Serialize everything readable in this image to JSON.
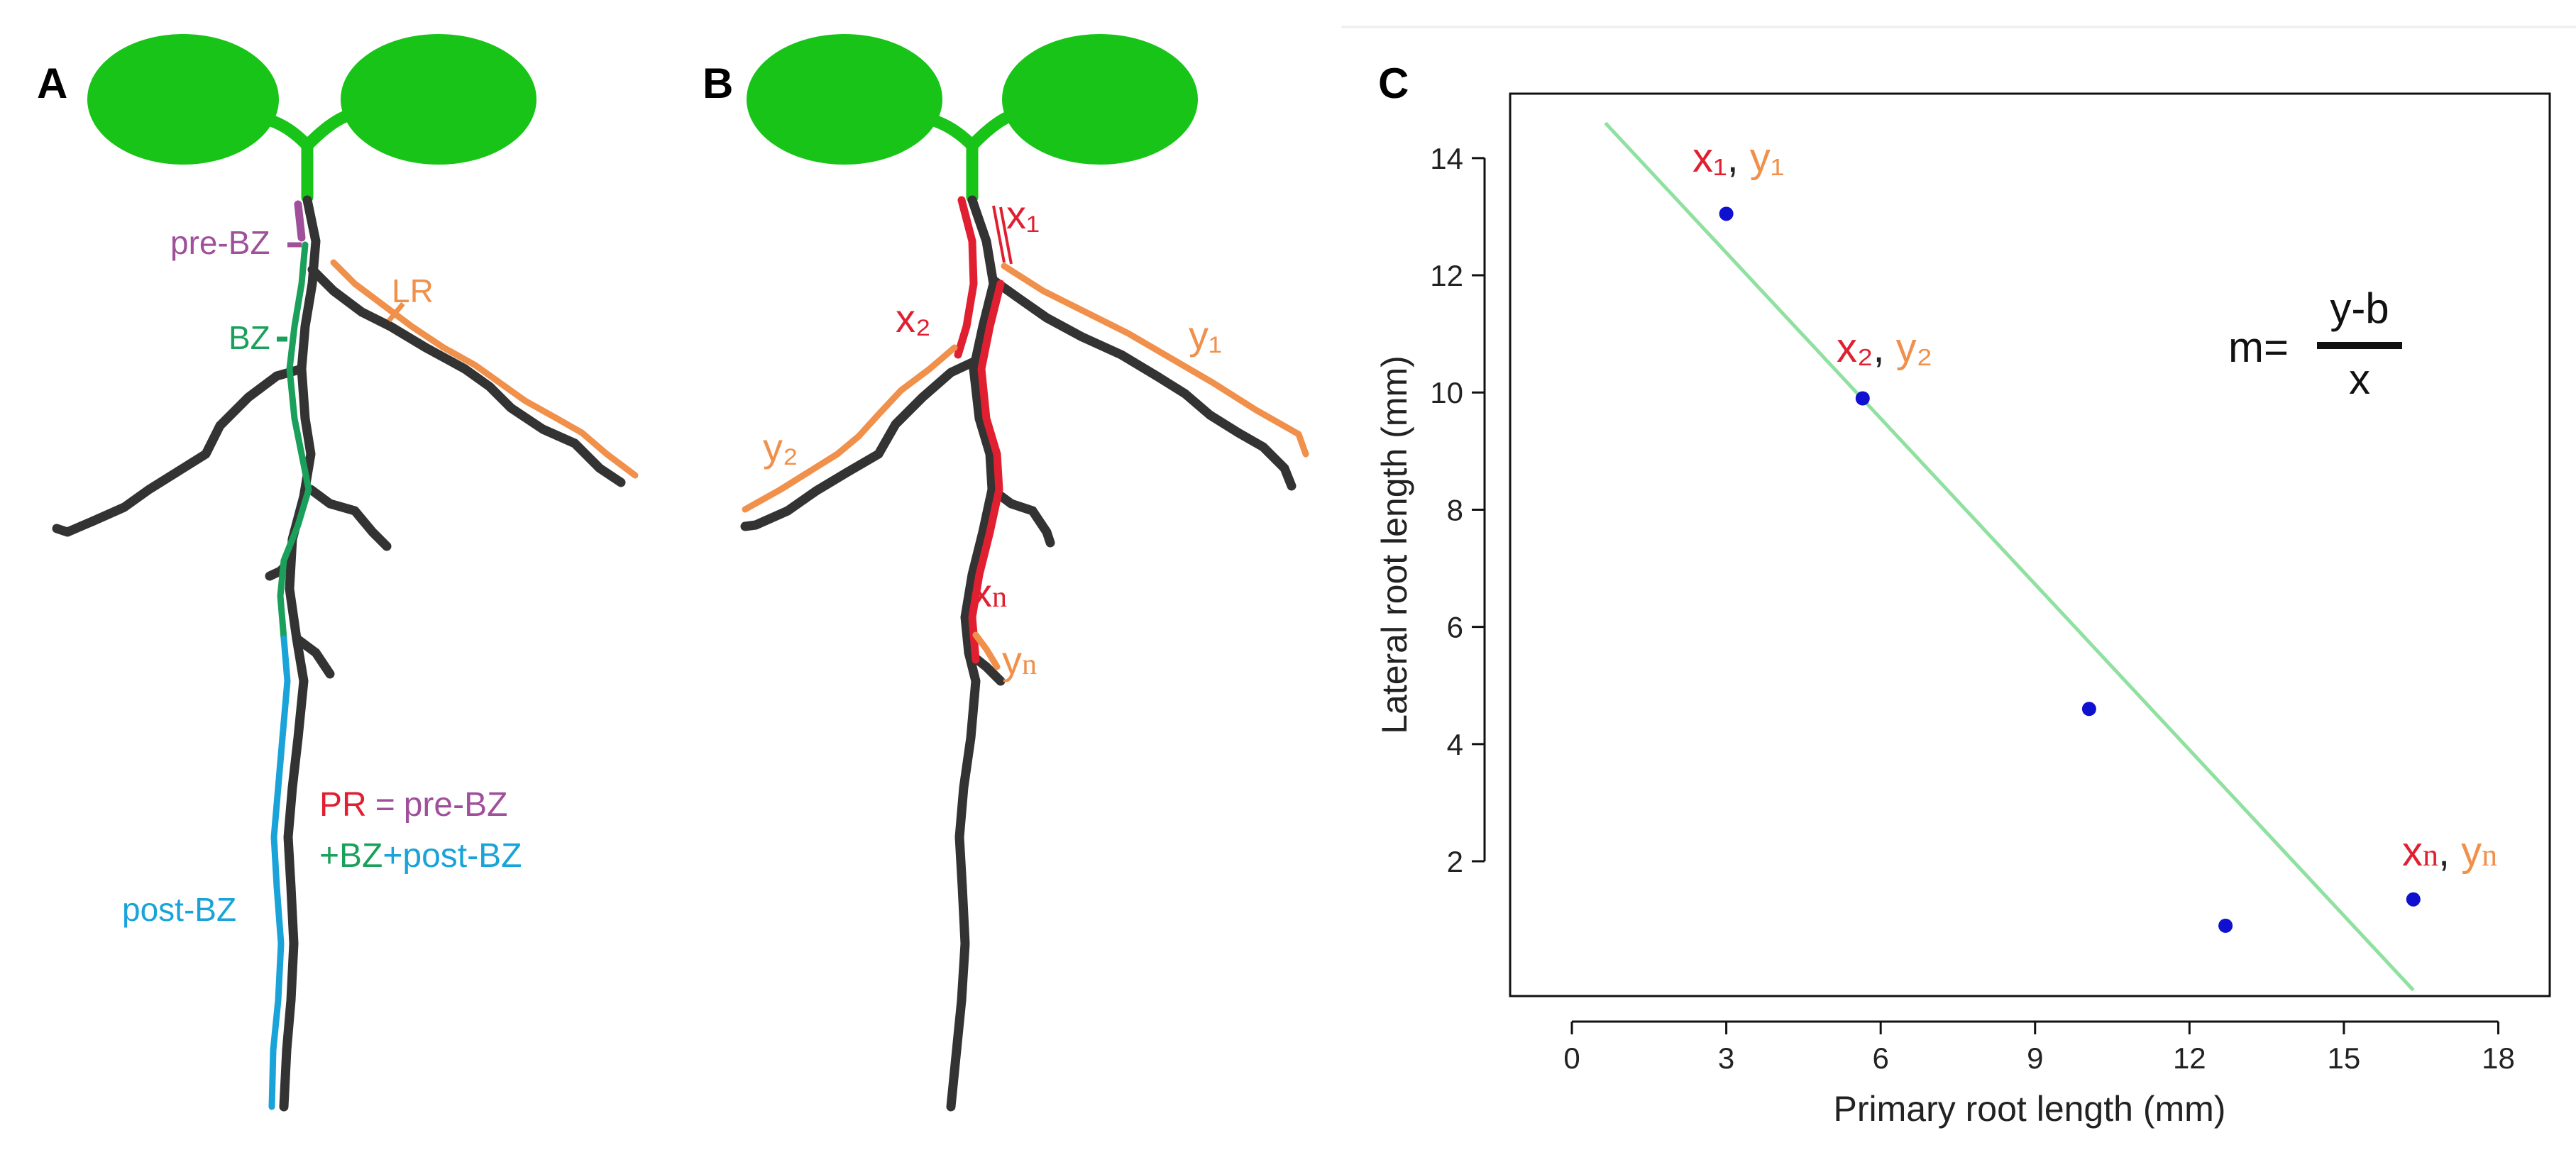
{
  "panels": {
    "a": {
      "letter": "A",
      "labels": {
        "pre_bz": "pre-BZ",
        "lr": "LR",
        "bz": "BZ",
        "post_bz": "post-BZ",
        "eq_pr": "PR",
        "eq_equals": "=",
        "eq_prebz": "pre-BZ",
        "eq_plus1": "+",
        "eq_bz": "BZ",
        "eq_plus2": "+",
        "eq_postbz": "post-BZ"
      }
    },
    "b": {
      "letter": "B",
      "labels": {
        "x1": "x₁",
        "y1": "y₁",
        "x2": "x₂",
        "y2": "y₂",
        "xn_base": "x",
        "xn_sub": "n",
        "yn_base": "y",
        "yn_sub": "n"
      }
    },
    "c": {
      "letter": "C",
      "formula": {
        "lhs": "m=",
        "numerator": "y-b",
        "denominator": "x"
      },
      "point_labels": {
        "p1": {
          "x": "x₁",
          "sep": ",",
          "y": "y₁"
        },
        "p2": {
          "x": "x₂",
          "sep": ",",
          "y": "y₂"
        },
        "pn": {
          "x": "x",
          "x_sub": "n",
          "sep": ",",
          "y": "y",
          "y_sub": "n"
        }
      }
    }
  },
  "colors": {
    "leaf_green": "#17c417",
    "root_dark": "#333333",
    "pre_bz_purple": "#a0509a",
    "bz_green": "#1aa05a",
    "post_bz_blue": "#19a3d8",
    "lr_orange": "#f0904a",
    "x_red": "#e02030",
    "y_orange": "#f0904a",
    "point_blue": "#1010d0",
    "fit_green": "#90e0a0"
  },
  "chart_data": {
    "type": "scatter",
    "xlabel": "Primary root length (mm)",
    "ylabel": "Lateral root length (mm)",
    "xlim": [
      -1.2,
      19.0
    ],
    "ylim": [
      -0.3,
      15.1
    ],
    "xticks": [
      0,
      3,
      6,
      9,
      12,
      15,
      18
    ],
    "yticks": [
      2,
      4,
      6,
      8,
      10,
      12,
      14
    ],
    "points": [
      {
        "x": 3.0,
        "y": 13.05
      },
      {
        "x": 5.65,
        "y": 9.9
      },
      {
        "x": 10.05,
        "y": 4.6
      },
      {
        "x": 12.7,
        "y": 0.9
      },
      {
        "x": 16.35,
        "y": 1.35
      }
    ],
    "fit_line": {
      "x": [
        0.65,
        16.35
      ],
      "y": [
        14.6,
        -0.2
      ]
    },
    "grid": false,
    "legend": "none"
  }
}
